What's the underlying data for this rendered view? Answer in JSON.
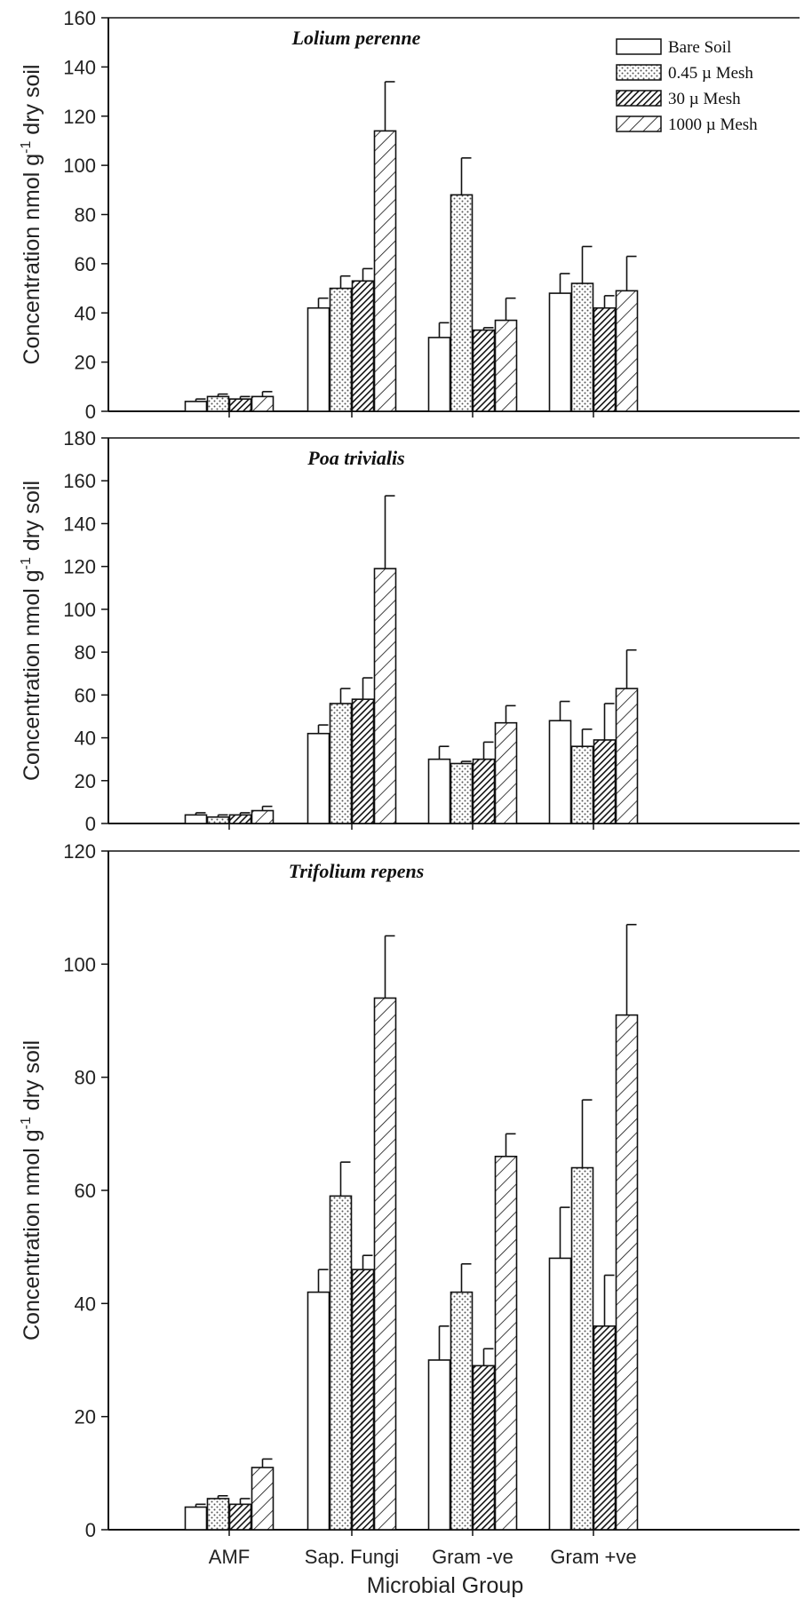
{
  "figure": {
    "xlabel": "Microbial Group",
    "ylabel_main": "Concentration nmol g",
    "ylabel_sup": "-1",
    "ylabel_tail": " dry soil"
  },
  "legend": [
    {
      "name": "Bare Soil",
      "pattern": "none"
    },
    {
      "name": "0.45 µ Mesh",
      "pattern": "dots"
    },
    {
      "name": "30 µ Mesh",
      "pattern": "dense-hatch"
    },
    {
      "name": "1000 µ Mesh",
      "pattern": "sparse-hatch"
    }
  ],
  "chart_data": [
    {
      "type": "bar",
      "title": "Lolium perenne",
      "categories": [
        "AMF",
        "Sap. Fungi",
        "Gram -ve",
        "Gram +ve"
      ],
      "ylim": [
        0,
        160
      ],
      "yticks": [
        0,
        20,
        40,
        60,
        80,
        100,
        120,
        140,
        160
      ],
      "show_category_labels": false,
      "series": [
        {
          "name": "Bare Soil",
          "values": [
            4,
            42,
            30,
            48
          ],
          "errors": [
            1,
            4,
            6,
            8
          ]
        },
        {
          "name": "0.45 µ Mesh",
          "values": [
            6,
            50,
            88,
            52
          ],
          "errors": [
            1,
            5,
            15,
            15
          ]
        },
        {
          "name": "30 µ Mesh",
          "values": [
            5,
            53,
            33,
            42
          ],
          "errors": [
            1,
            5,
            1,
            5
          ]
        },
        {
          "name": "1000 µ Mesh",
          "values": [
            6,
            114,
            37,
            49
          ],
          "errors": [
            2,
            20,
            9,
            14
          ]
        }
      ]
    },
    {
      "type": "bar",
      "title": "Poa trivialis",
      "categories": [
        "AMF",
        "Sap. Fungi",
        "Gram -ve",
        "Gram +ve"
      ],
      "ylim": [
        0,
        180
      ],
      "yticks": [
        0,
        20,
        40,
        60,
        80,
        100,
        120,
        140,
        160,
        180
      ],
      "show_category_labels": false,
      "series": [
        {
          "name": "Bare Soil",
          "values": [
            4,
            42,
            30,
            48
          ],
          "errors": [
            1,
            4,
            6,
            9
          ]
        },
        {
          "name": "0.45 µ Mesh",
          "values": [
            3,
            56,
            28,
            36
          ],
          "errors": [
            1,
            7,
            1,
            8
          ]
        },
        {
          "name": "30 µ Mesh",
          "values": [
            4,
            58,
            30,
            39
          ],
          "errors": [
            1,
            10,
            8,
            17
          ]
        },
        {
          "name": "1000 µ Mesh",
          "values": [
            6,
            119,
            47,
            63
          ],
          "errors": [
            2,
            34,
            8,
            18
          ]
        }
      ]
    },
    {
      "type": "bar",
      "title": "Trifolium repens",
      "categories": [
        "AMF",
        "Sap. Fungi",
        "Gram -ve",
        "Gram +ve"
      ],
      "ylim": [
        0,
        120
      ],
      "yticks": [
        0,
        20,
        40,
        60,
        80,
        100,
        120
      ],
      "show_category_labels": true,
      "series": [
        {
          "name": "Bare Soil",
          "values": [
            4,
            42,
            30,
            48
          ],
          "errors": [
            0.5,
            4,
            6,
            9
          ]
        },
        {
          "name": "0.45 µ Mesh",
          "values": [
            5.5,
            59,
            42,
            64
          ],
          "errors": [
            0.5,
            6,
            5,
            12
          ]
        },
        {
          "name": "30 µ Mesh",
          "values": [
            4.5,
            46,
            29,
            36
          ],
          "errors": [
            1,
            2.5,
            3,
            9
          ]
        },
        {
          "name": "1000 µ Mesh",
          "values": [
            11,
            94,
            66,
            91
          ],
          "errors": [
            1.5,
            11,
            4,
            16
          ]
        }
      ]
    }
  ]
}
